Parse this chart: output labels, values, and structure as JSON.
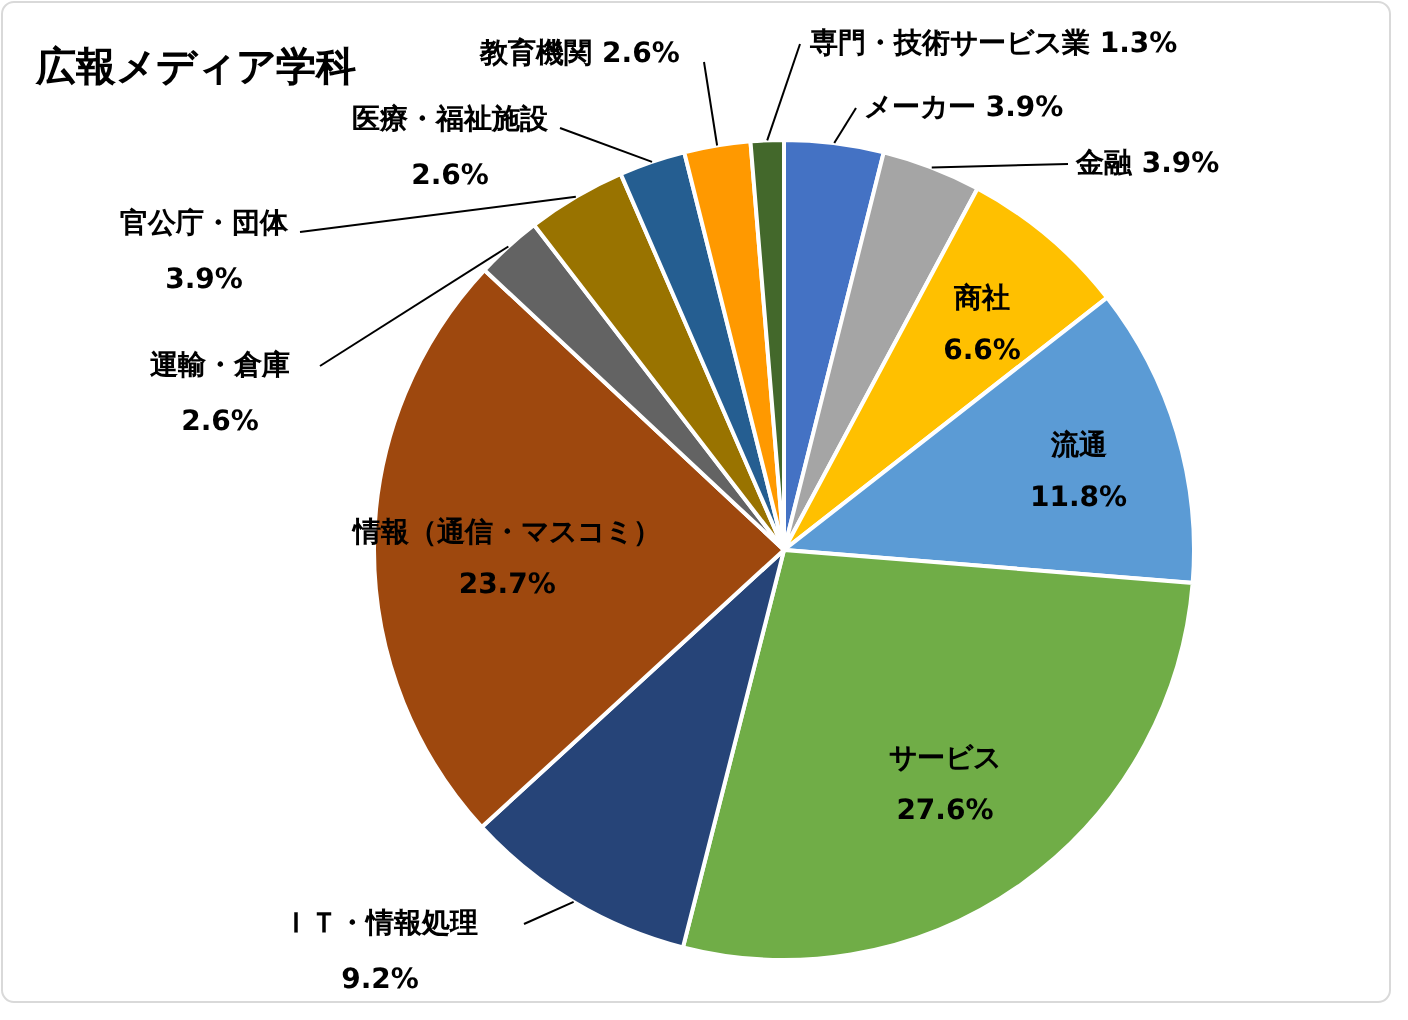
{
  "chart_data": {
    "type": "pie",
    "title": "広報メディア学科",
    "categories": [
      "メーカー",
      "金融",
      "商社",
      "流通",
      "サービス",
      "ＩＴ・情報処理",
      "情報（通信・マスコミ）",
      "運輸・倉庫",
      "官公庁・団体",
      "医療・福祉施設",
      "教育機関",
      "専門・技術サービス業"
    ],
    "values": [
      3.9,
      3.9,
      6.6,
      11.8,
      27.6,
      9.2,
      23.7,
      2.6,
      3.9,
      2.6,
      2.6,
      1.3
    ],
    "value_labels": [
      "3.9%",
      "3.9%",
      "6.6%",
      "11.8%",
      "27.6%",
      "9.2%",
      "23.7%",
      "2.6%",
      "3.9%",
      "2.6%",
      "2.6%",
      "1.3%"
    ],
    "colors": [
      "#4472c4",
      "#a5a5a5",
      "#ffc000",
      "#5b9bd5",
      "#70ad47",
      "#264478",
      "#9e480e",
      "#636363",
      "#997300",
      "#255e91",
      "#ff9900",
      "#43682b"
    ]
  }
}
